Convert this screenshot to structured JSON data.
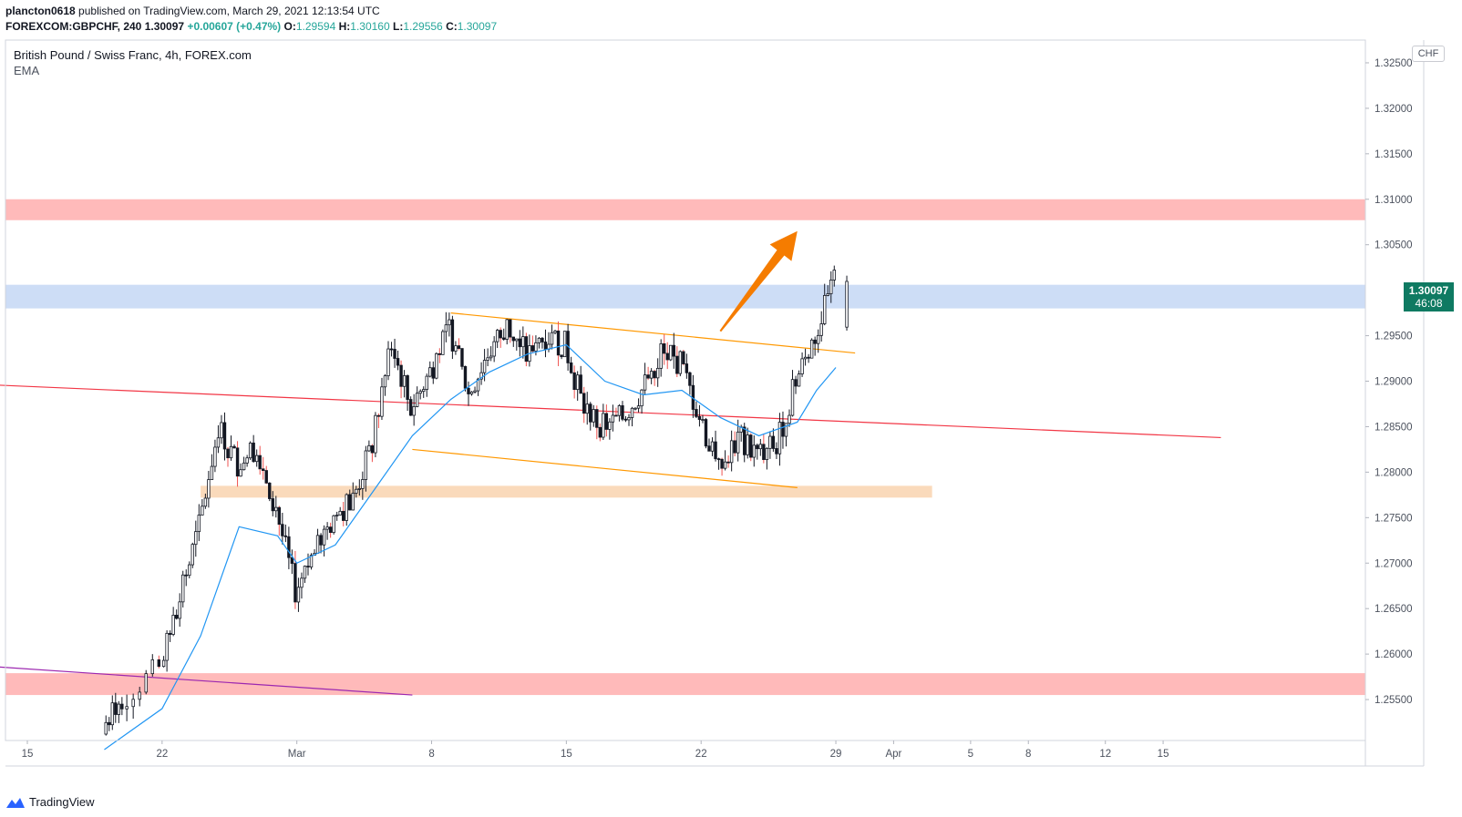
{
  "header": {
    "author": "plancton0618",
    "published_text": "published on TradingView.com, March 29, 2021 12:13:54 UTC",
    "symbol": "FOREXCOM:GBPCHF, 240",
    "last": "1.30097",
    "change": "+0.00607 (+0.47%)",
    "o_label": "O:",
    "o_value": "1.29594",
    "h_label": "H:",
    "h_value": "1.30160",
    "l_label": "L:",
    "l_value": "1.29556",
    "c_label": "C:",
    "c_value": "1.30097"
  },
  "legend": {
    "title": "British Pound / Swiss Franc, 4h, FOREX.com",
    "indicator": "EMA"
  },
  "axis": {
    "currency": "CHF",
    "current_price": "1.30097",
    "countdown": "46:08"
  },
  "footer": {
    "brand": "TradingView"
  },
  "colors": {
    "up": "#26a69a",
    "down": "#ef5350",
    "candle": "#131722",
    "ema": "#2196f3",
    "resistance_zone": "#ffb3b3",
    "blue_zone": "#c8d9f5",
    "support_zone": "#fad6b4",
    "channel": "#ff9800",
    "trendline_red": "#f23645",
    "trendline_purple": "#9c27b0",
    "arrow": "#f57c00"
  },
  "chart_data": {
    "type": "candlestick",
    "symbol": "GBPCHF",
    "timeframe": "4h",
    "ylim": [
      1.2505,
      1.3275
    ],
    "y_ticks": [
      "1.32500",
      "1.32000",
      "1.31500",
      "1.31000",
      "1.30500",
      "1.30097",
      "1.29500",
      "1.29000",
      "1.28500",
      "1.28000",
      "1.27500",
      "1.27000",
      "1.26500",
      "1.26000",
      "1.25500"
    ],
    "x_ticks": [
      {
        "label": "15",
        "date": "2021-02-15"
      },
      {
        "label": "22",
        "date": "2021-02-22"
      },
      {
        "label": "Mar",
        "date": "2021-03-01"
      },
      {
        "label": "8",
        "date": "2021-03-08"
      },
      {
        "label": "15",
        "date": "2021-03-15"
      },
      {
        "label": "22",
        "date": "2021-03-22"
      },
      {
        "label": "29",
        "date": "2021-03-29"
      },
      {
        "label": "Apr",
        "date": "2021-04-01"
      },
      {
        "label": "5",
        "date": "2021-04-05"
      },
      {
        "label": "8",
        "date": "2021-04-08"
      },
      {
        "label": "12",
        "date": "2021-04-12"
      },
      {
        "label": "15",
        "date": "2021-04-15"
      }
    ],
    "zones": [
      {
        "name": "resistance",
        "from": 1.3077,
        "to": 1.31
      },
      {
        "name": "blue",
        "from": 1.298,
        "to": 1.3006
      },
      {
        "name": "support",
        "from": 1.2772,
        "to": 1.2785,
        "start": "2021-02-24",
        "end": "2021-04-03"
      },
      {
        "name": "lower",
        "from": 1.2555,
        "to": 1.2579
      }
    ],
    "close_series": [
      {
        "date": "2021-02-19",
        "close": 1.252
      },
      {
        "date": "2021-02-20",
        "close": 1.255
      },
      {
        "date": "2021-02-22",
        "close": 1.2585
      },
      {
        "date": "2021-02-23",
        "close": 1.266
      },
      {
        "date": "2021-02-24",
        "close": 1.274
      },
      {
        "date": "2021-02-25",
        "close": 1.285
      },
      {
        "date": "2021-02-26",
        "close": 1.281
      },
      {
        "date": "2021-02-27",
        "close": 1.283
      },
      {
        "date": "2021-02-28",
        "close": 1.276
      },
      {
        "date": "2021-03-01",
        "close": 1.267
      },
      {
        "date": "2021-03-02",
        "close": 1.271
      },
      {
        "date": "2021-03-03",
        "close": 1.275
      },
      {
        "date": "2021-03-04",
        "close": 1.277
      },
      {
        "date": "2021-03-05",
        "close": 1.283
      },
      {
        "date": "2021-03-06",
        "close": 1.294
      },
      {
        "date": "2021-03-07",
        "close": 1.287
      },
      {
        "date": "2021-03-08",
        "close": 1.291
      },
      {
        "date": "2021-03-09",
        "close": 1.296
      },
      {
        "date": "2021-03-10",
        "close": 1.2885
      },
      {
        "date": "2021-03-11",
        "close": 1.293
      },
      {
        "date": "2021-03-12",
        "close": 1.296
      },
      {
        "date": "2021-03-13",
        "close": 1.293
      },
      {
        "date": "2021-03-14",
        "close": 1.295
      },
      {
        "date": "2021-03-15",
        "close": 1.294
      },
      {
        "date": "2021-03-16",
        "close": 1.287
      },
      {
        "date": "2021-03-17",
        "close": 1.285
      },
      {
        "date": "2021-03-18",
        "close": 1.286
      },
      {
        "date": "2021-03-19",
        "close": 1.289
      },
      {
        "date": "2021-03-20",
        "close": 1.293
      },
      {
        "date": "2021-03-21",
        "close": 1.292
      },
      {
        "date": "2021-03-22",
        "close": 1.286
      },
      {
        "date": "2021-03-23",
        "close": 1.28
      },
      {
        "date": "2021-03-24",
        "close": 1.284
      },
      {
        "date": "2021-03-25",
        "close": 1.282
      },
      {
        "date": "2021-03-26",
        "close": 1.283
      },
      {
        "date": "2021-03-27",
        "close": 1.29
      },
      {
        "date": "2021-03-28",
        "close": 1.295
      },
      {
        "date": "2021-03-29",
        "close": 1.30097
      }
    ],
    "ema_series": [
      {
        "date": "2021-02-19",
        "value": 1.2495
      },
      {
        "date": "2021-02-22",
        "value": 1.254
      },
      {
        "date": "2021-02-24",
        "value": 1.262
      },
      {
        "date": "2021-02-26",
        "value": 1.274
      },
      {
        "date": "2021-02-28",
        "value": 1.273
      },
      {
        "date": "2021-03-01",
        "value": 1.27
      },
      {
        "date": "2021-03-03",
        "value": 1.272
      },
      {
        "date": "2021-03-05",
        "value": 1.278
      },
      {
        "date": "2021-03-07",
        "value": 1.284
      },
      {
        "date": "2021-03-09",
        "value": 1.288
      },
      {
        "date": "2021-03-11",
        "value": 1.291
      },
      {
        "date": "2021-03-13",
        "value": 1.293
      },
      {
        "date": "2021-03-15",
        "value": 1.294
      },
      {
        "date": "2021-03-17",
        "value": 1.29
      },
      {
        "date": "2021-03-19",
        "value": 1.2885
      },
      {
        "date": "2021-03-21",
        "value": 1.289
      },
      {
        "date": "2021-03-23",
        "value": 1.286
      },
      {
        "date": "2021-03-25",
        "value": 1.284
      },
      {
        "date": "2021-03-27",
        "value": 1.2855
      },
      {
        "date": "2021-03-28",
        "value": 1.289
      },
      {
        "date": "2021-03-29",
        "value": 1.2915
      }
    ],
    "trendlines": [
      {
        "name": "channel-top",
        "from": {
          "date": "2021-03-09",
          "price": 1.2975
        },
        "to": {
          "date": "2021-03-30",
          "price": 1.2931
        }
      },
      {
        "name": "channel-bottom",
        "from": {
          "date": "2021-03-07",
          "price": 1.2825
        },
        "to": {
          "date": "2021-03-27",
          "price": 1.2783
        }
      },
      {
        "name": "red-trendline",
        "from": {
          "date": "2021-02-12",
          "price": 1.2897
        },
        "to": {
          "date": "2021-04-18",
          "price": 1.2838
        }
      },
      {
        "name": "purple-trendline",
        "from": {
          "date": "2021-02-12",
          "price": 1.2588
        },
        "to": {
          "date": "2021-03-07",
          "price": 1.2555
        }
      }
    ],
    "annotations": [
      {
        "name": "projection-arrow",
        "from": {
          "date": "2021-03-23",
          "price": 1.2955
        },
        "to": {
          "date": "2021-03-27",
          "price": 1.3065
        }
      }
    ]
  }
}
